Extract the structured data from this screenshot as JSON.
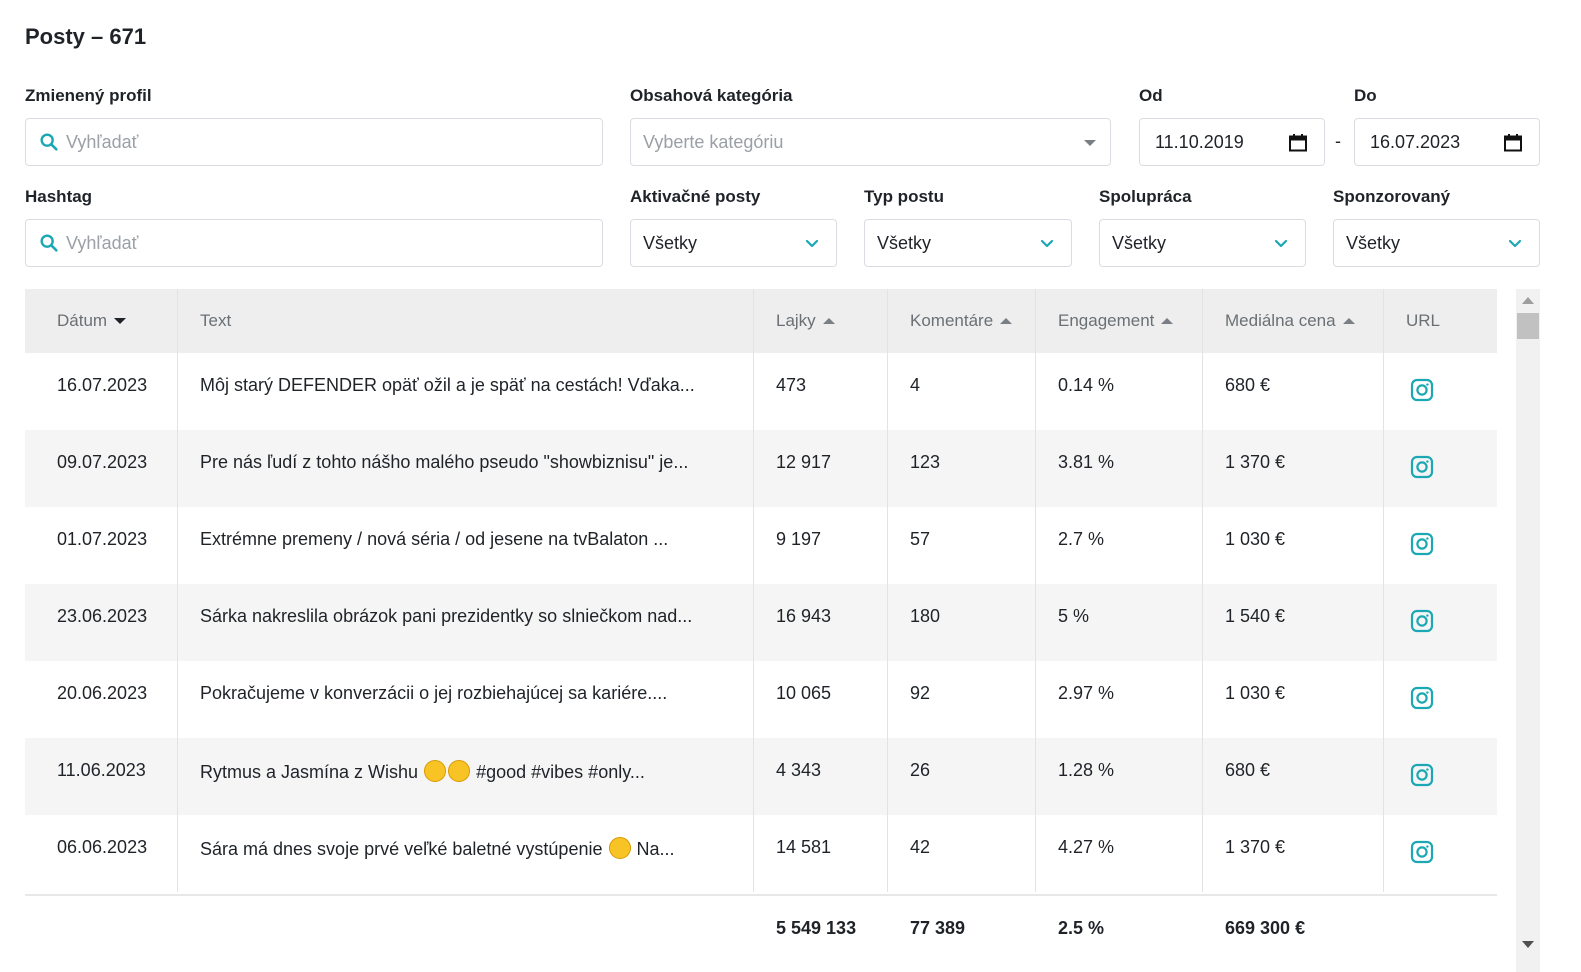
{
  "title": "Posty – 671",
  "filters": {
    "mentioned_profile": {
      "label": "Zmienený profil",
      "placeholder": "Vyhľadať"
    },
    "content_category": {
      "label": "Obsahová kategória",
      "placeholder": "Vyberte kategóriu"
    },
    "date_from": {
      "label": "Od",
      "value": "11.10.2019"
    },
    "date_to": {
      "label": "Do",
      "value": "16.07.2023"
    },
    "date_separator": "-",
    "hashtag": {
      "label": "Hashtag",
      "placeholder": "Vyhľadať"
    },
    "activation_posts": {
      "label": "Aktivačné posty",
      "value": "Všetky"
    },
    "post_type": {
      "label": "Typ postu",
      "value": "Všetky"
    },
    "collaboration": {
      "label": "Spolupráca",
      "value": "Všetky"
    },
    "sponsored": {
      "label": "Sponzorovaný",
      "value": "Všetky"
    }
  },
  "table": {
    "columns": [
      "Dátum",
      "Text",
      "Lajky",
      "Komentáre",
      "Engagement",
      "Mediálna cena",
      "URL"
    ],
    "rows": [
      {
        "date": "16.07.2023",
        "text": "Môj starý DEFENDER opäť ožil a je späť na cestách! Vďaka...",
        "likes": "473",
        "comments": "4",
        "engagement": "0.14 %",
        "cost": "680 €",
        "url_icon": "instagram-icon"
      },
      {
        "date": "09.07.2023",
        "text": "Pre nás ľudí z tohto nášho malého pseudo \"showbiznisu\" je...",
        "likes": "12 917",
        "comments": "123",
        "engagement": "3.81 %",
        "cost": "1 370 €",
        "url_icon": "instagram-icon"
      },
      {
        "date": "01.07.2023",
        "text": "Extrémne premeny / nová séria / od jesene na tvBalaton ...",
        "likes": "9 197",
        "comments": "57",
        "engagement": "2.7 %",
        "cost": "1 030 €",
        "url_icon": "instagram-icon"
      },
      {
        "date": "23.06.2023",
        "text": "Sárka nakreslila obrázok pani prezidentky so slniečkom nad...",
        "likes": "16 943",
        "comments": "180",
        "engagement": "5 %",
        "cost": "1 540 €",
        "url_icon": "instagram-icon"
      },
      {
        "date": "20.06.2023",
        "text": "Pokračujeme v konverzácii o jej rozbiehajúcej sa kariére....",
        "likes": "10 065",
        "comments": "92",
        "engagement": "2.97 %",
        "cost": "1 030 €",
        "url_icon": "instagram-icon"
      },
      {
        "date": "11.06.2023",
        "text_before": "Rytmus a Jasmína z Wishu",
        "text_after": "#good #vibes #only...",
        "likes": "4 343",
        "comments": "26",
        "engagement": "1.28 %",
        "cost": "680 €",
        "url_icon": "instagram-icon"
      },
      {
        "date": "06.06.2023",
        "text_before": "Sára má dnes svoje prvé veľké baletné vystúpenie",
        "text_after": "Na...",
        "likes": "14 581",
        "comments": "42",
        "engagement": "4.27 %",
        "cost": "1 370 €",
        "url_icon": "instagram-icon"
      }
    ],
    "totals": {
      "likes": "5 549 133",
      "comments": "77 389",
      "engagement": "2.5 %",
      "cost": "669 300 €"
    }
  },
  "colors": {
    "accent": "#1ba8b4",
    "header_bg": "#eeeeee",
    "row_alt": "#f5f5f5"
  }
}
